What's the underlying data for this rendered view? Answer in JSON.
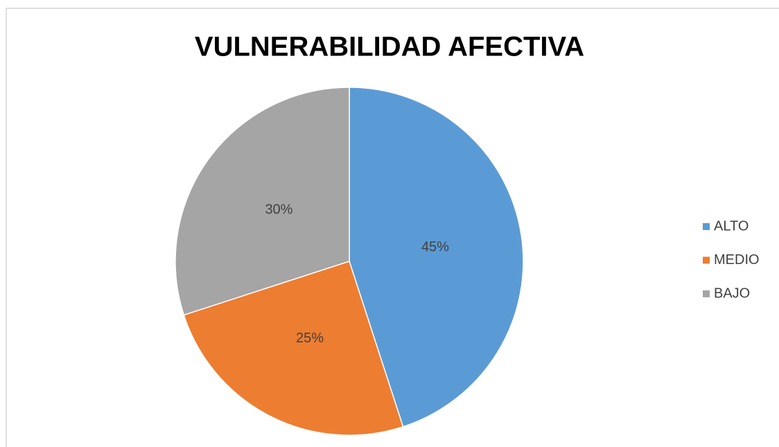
{
  "chart_data": {
    "type": "pie",
    "title": "VULNERABILIDAD AFECTIVA",
    "categories": [
      "ALTO",
      "MEDIO",
      "BAJO"
    ],
    "values": [
      45,
      25,
      30
    ],
    "value_labels": [
      "45%",
      "25%",
      "30%"
    ],
    "colors": [
      "#5b9bd5",
      "#ed7d31",
      "#a5a5a5"
    ],
    "legend": "right"
  }
}
